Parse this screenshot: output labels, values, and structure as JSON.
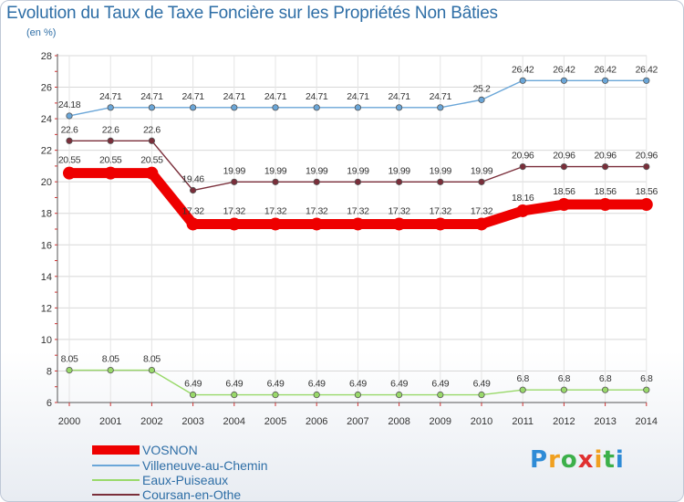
{
  "title": "Evolution du Taux de Taxe Foncière sur les Propriétés Non Bâties",
  "unit_label": "(en %)",
  "logo": {
    "letters": [
      "P",
      "r",
      "o",
      "x",
      "i",
      "t",
      "i"
    ],
    "colors": [
      "#2e8bd6",
      "#f0a020",
      "#3cb04a",
      "#e03030",
      "#f0a020",
      "#3cb04a",
      "#2e8bd6"
    ]
  },
  "chart_data": {
    "type": "line",
    "title": "Evolution du Taux de Taxe Foncière sur les Propriétés Non Bâties",
    "ylabel": "(en %)",
    "xlabel": "",
    "ylim": [
      6,
      28
    ],
    "yticks": [
      6,
      8,
      10,
      12,
      14,
      16,
      18,
      20,
      22,
      24,
      26,
      28
    ],
    "categories": [
      "2000",
      "2001",
      "2002",
      "2003",
      "2004",
      "2005",
      "2006",
      "2007",
      "2008",
      "2009",
      "2010",
      "2011",
      "2012",
      "2013",
      "2014"
    ],
    "legend_position": "bottom-left",
    "series": [
      {
        "name": "VOSNON",
        "color": "#ee0000",
        "bold": true,
        "values": [
          20.55,
          20.55,
          20.55,
          17.32,
          17.32,
          17.32,
          17.32,
          17.32,
          17.32,
          17.32,
          17.32,
          18.16,
          18.56,
          18.56,
          18.56
        ],
        "labels": [
          "20.55",
          "20.55",
          "20.55",
          "17.32",
          "17.32",
          "17.32",
          "17.32",
          "17.32",
          "17.32",
          "17.32",
          "17.32",
          "18.16",
          "18.56",
          "18.56",
          "18.56"
        ]
      },
      {
        "name": "Villeneuve-au-Chemin",
        "color": "#6aa6d8",
        "bold": false,
        "values": [
          24.18,
          24.71,
          24.71,
          24.71,
          24.71,
          24.71,
          24.71,
          24.71,
          24.71,
          24.71,
          25.2,
          26.42,
          26.42,
          26.42,
          26.42
        ],
        "labels": [
          "24.18",
          "24.71",
          "24.71",
          "24.71",
          "24.71",
          "24.71",
          "24.71",
          "24.71",
          "24.71",
          "24.71",
          "25.2",
          "26.42",
          "26.42",
          "26.42",
          "26.42"
        ]
      },
      {
        "name": "Eaux-Puiseaux",
        "color": "#99d96a",
        "bold": false,
        "values": [
          8.05,
          8.05,
          8.05,
          6.49,
          6.49,
          6.49,
          6.49,
          6.49,
          6.49,
          6.49,
          6.49,
          6.8,
          6.8,
          6.8,
          6.8
        ],
        "labels": [
          "8.05",
          "8.05",
          "8.05",
          "6.49",
          "6.49",
          "6.49",
          "6.49",
          "6.49",
          "6.49",
          "6.49",
          "6.49",
          "6.8",
          "6.8",
          "6.8",
          "6.8"
        ]
      },
      {
        "name": "Coursan-en-Othe",
        "color": "#7a2e3a",
        "bold": false,
        "values": [
          22.6,
          22.6,
          22.6,
          19.46,
          19.99,
          19.99,
          19.99,
          19.99,
          19.99,
          19.99,
          19.99,
          20.96,
          20.96,
          20.96,
          20.96
        ],
        "labels": [
          "22.6",
          "22.6",
          "22.6",
          "19.46",
          "19.99",
          "19.99",
          "19.99",
          "19.99",
          "19.99",
          "19.99",
          "19.99",
          "20.96",
          "20.96",
          "20.96",
          "20.96"
        ]
      }
    ]
  }
}
